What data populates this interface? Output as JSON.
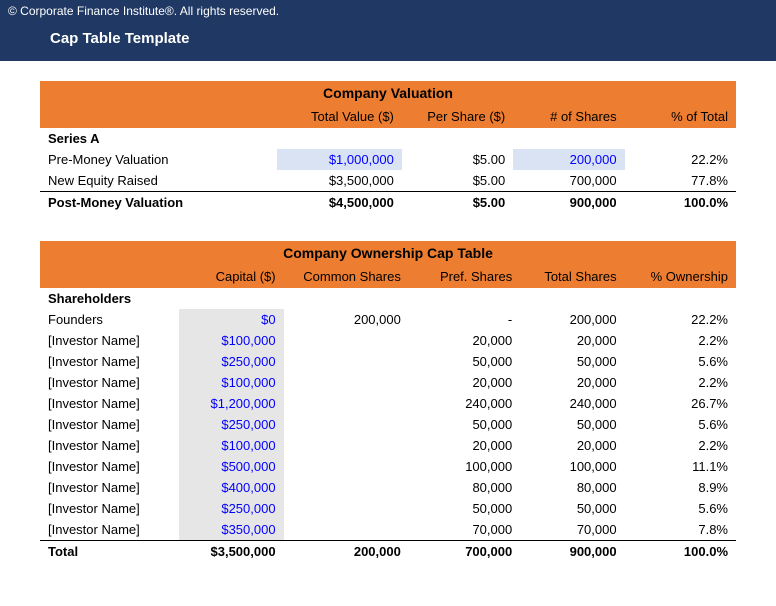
{
  "header": {
    "copyright": "© Corporate Finance Institute®. All rights reserved.",
    "title": "Cap Table Template"
  },
  "valuation": {
    "section_title": "Company Valuation",
    "columns": [
      "",
      "Total Value ($)",
      "Per Share ($)",
      "# of Shares",
      "% of Total"
    ],
    "group_label": "Series A",
    "rows": [
      {
        "label": "Pre-Money Valuation",
        "total_value": "$1,000,000",
        "per_share": "$5.00",
        "shares": "200,000",
        "pct": "22.2%",
        "hl_value": true,
        "hl_shares": true
      },
      {
        "label": "New Equity Raised",
        "total_value": "$3,500,000",
        "per_share": "$5.00",
        "shares": "700,000",
        "pct": "77.8%",
        "hl_value": false,
        "hl_shares": false
      }
    ],
    "total": {
      "label": "Post-Money Valuation",
      "total_value": "$4,500,000",
      "per_share": "$5.00",
      "shares": "900,000",
      "pct": "100.0%"
    }
  },
  "ownership": {
    "section_title": "Company Ownership Cap Table",
    "columns": [
      "",
      "Capital ($)",
      "Common Shares",
      "Pref. Shares",
      "Total Shares",
      "% Ownership"
    ],
    "group_label": "Shareholders",
    "rows": [
      {
        "label": "Founders",
        "capital": "$0",
        "common": "200,000",
        "pref": "-",
        "total": "200,000",
        "pct": "22.2%"
      },
      {
        "label": "[Investor Name]",
        "capital": "$100,000",
        "common": "",
        "pref": "20,000",
        "total": "20,000",
        "pct": "2.2%"
      },
      {
        "label": "[Investor Name]",
        "capital": "$250,000",
        "common": "",
        "pref": "50,000",
        "total": "50,000",
        "pct": "5.6%"
      },
      {
        "label": "[Investor Name]",
        "capital": "$100,000",
        "common": "",
        "pref": "20,000",
        "total": "20,000",
        "pct": "2.2%"
      },
      {
        "label": "[Investor Name]",
        "capital": "$1,200,000",
        "common": "",
        "pref": "240,000",
        "total": "240,000",
        "pct": "26.7%"
      },
      {
        "label": "[Investor Name]",
        "capital": "$250,000",
        "common": "",
        "pref": "50,000",
        "total": "50,000",
        "pct": "5.6%"
      },
      {
        "label": "[Investor Name]",
        "capital": "$100,000",
        "common": "",
        "pref": "20,000",
        "total": "20,000",
        "pct": "2.2%"
      },
      {
        "label": "[Investor Name]",
        "capital": "$500,000",
        "common": "",
        "pref": "100,000",
        "total": "100,000",
        "pct": "11.1%"
      },
      {
        "label": "[Investor Name]",
        "capital": "$400,000",
        "common": "",
        "pref": "80,000",
        "total": "80,000",
        "pct": "8.9%"
      },
      {
        "label": "[Investor Name]",
        "capital": "$250,000",
        "common": "",
        "pref": "50,000",
        "total": "50,000",
        "pct": "5.6%"
      },
      {
        "label": "[Investor Name]",
        "capital": "$350,000",
        "common": "",
        "pref": "70,000",
        "total": "70,000",
        "pct": "7.8%"
      }
    ],
    "total": {
      "label": "Total",
      "capital": "$3,500,000",
      "common": "200,000",
      "pref": "700,000",
      "total": "900,000",
      "pct": "100.0%"
    }
  },
  "style": {
    "col_widths_valuation": [
      "34%",
      "18%",
      "16%",
      "16%",
      "16%"
    ],
    "col_widths_ownership": [
      "20%",
      "15%",
      "18%",
      "16%",
      "15%",
      "16%"
    ]
  }
}
